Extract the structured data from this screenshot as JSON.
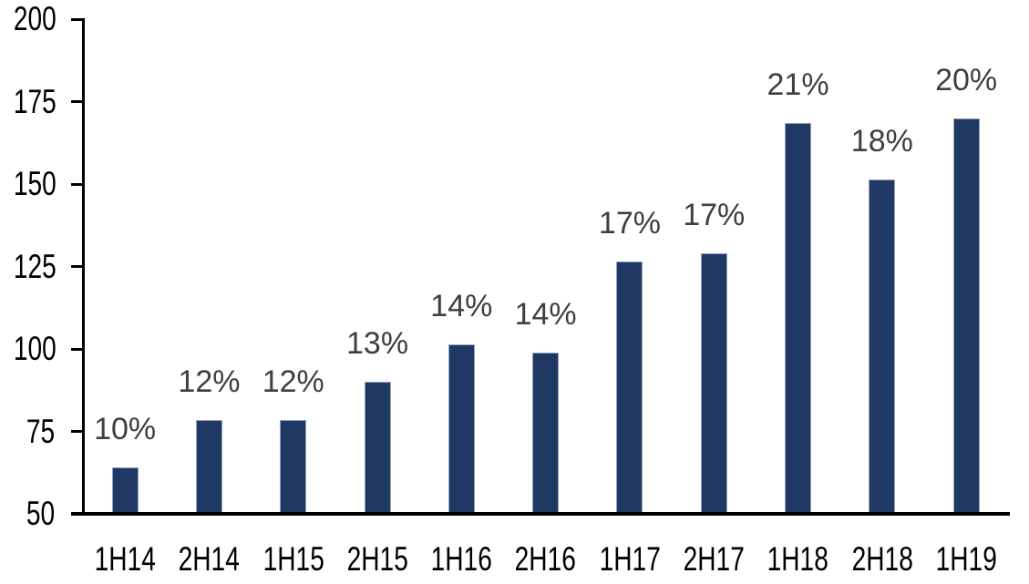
{
  "chart_data": {
    "type": "bar",
    "title": "",
    "xlabel": "",
    "ylabel": "",
    "categories": [
      "1H14",
      "2H14",
      "1H15",
      "2H15",
      "1H16",
      "2H16",
      "1H17",
      "2H17",
      "1H18",
      "2H18",
      "1H19"
    ],
    "values": [
      64,
      78.5,
      78.5,
      90,
      101.5,
      99,
      126.5,
      129,
      168.5,
      151.5,
      170
    ],
    "bar_labels": [
      "10%",
      "12%",
      "12%",
      "13%",
      "14%",
      "14%",
      "17%",
      "17%",
      "21%",
      "18%",
      "20%"
    ],
    "ylim": [
      50,
      200
    ],
    "yticks": [
      200,
      175,
      150,
      125,
      100,
      75,
      50
    ],
    "grid": false,
    "legend": false,
    "colors": {
      "bar_fill": "#203864",
      "bar_border": "#92a3c0",
      "data_label": "#3f3f3f",
      "axis": "#000000",
      "background": "#ffffff"
    }
  }
}
